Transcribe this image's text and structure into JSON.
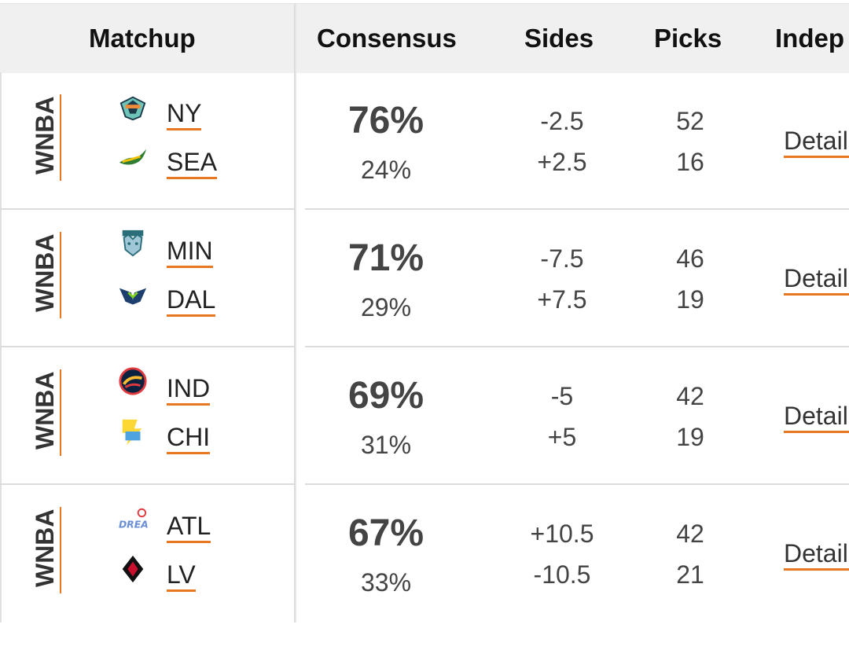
{
  "headers": {
    "matchup": "Matchup",
    "consensus": "Consensus",
    "sides": "Sides",
    "picks": "Picks",
    "indep": "Indep"
  },
  "rows": [
    {
      "league": "WNBA",
      "team1": {
        "abbr": "NY",
        "logo": "liberty-logo-icon",
        "consensus": "76%",
        "side": "-2.5",
        "picks": "52"
      },
      "team2": {
        "abbr": "SEA",
        "logo": "storm-logo-icon",
        "consensus": "24%",
        "side": "+2.5",
        "picks": "16"
      },
      "details": "Details"
    },
    {
      "league": "WNBA",
      "team1": {
        "abbr": "MIN",
        "logo": "lynx-logo-icon",
        "consensus": "71%",
        "side": "-7.5",
        "picks": "46"
      },
      "team2": {
        "abbr": "DAL",
        "logo": "wings-logo-icon",
        "consensus": "29%",
        "side": "+7.5",
        "picks": "19"
      },
      "details": "Details"
    },
    {
      "league": "WNBA",
      "team1": {
        "abbr": "IND",
        "logo": "fever-logo-icon",
        "consensus": "69%",
        "side": "-5",
        "picks": "42"
      },
      "team2": {
        "abbr": "CHI",
        "logo": "sky-logo-icon",
        "consensus": "31%",
        "side": "+5",
        "picks": "19"
      },
      "details": "Details"
    },
    {
      "league": "WNBA",
      "team1": {
        "abbr": "ATL",
        "logo": "dream-logo-icon",
        "consensus": "67%",
        "side": "+10.5",
        "picks": "42"
      },
      "team2": {
        "abbr": "LV",
        "logo": "aces-logo-icon",
        "consensus": "33%",
        "side": "-10.5",
        "picks": "21"
      },
      "details": "Details"
    }
  ],
  "colors": {
    "accent": "#e87722",
    "header_bg": "#f0f0f0"
  }
}
